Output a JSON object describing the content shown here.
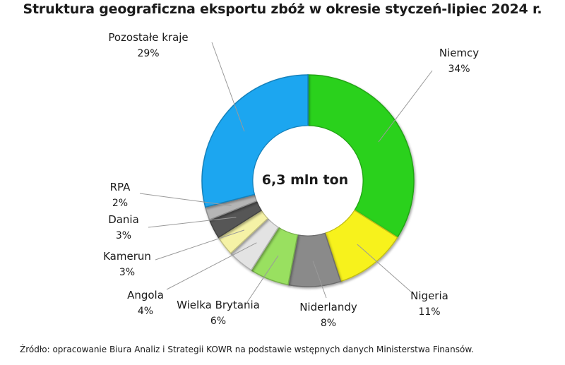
{
  "chart_data": {
    "type": "pie",
    "variant": "donut",
    "title": "Struktura geograficzna eksportu zbóż w okresie styczeń-lipiec 2024 r.",
    "center_label": "6,3 mln ton",
    "unit": "%",
    "legend": "none",
    "slices": [
      {
        "label": "Niemcy",
        "value": 34,
        "value_label": "34%",
        "color": "#2bd11a"
      },
      {
        "label": "Nigeria",
        "value": 11,
        "value_label": "11%",
        "color": "#f7f21e"
      },
      {
        "label": "Niderlandy",
        "value": 8,
        "value_label": "8%",
        "color": "#8a8a8a"
      },
      {
        "label": "Wielka Brytania",
        "value": 6,
        "value_label": "6%",
        "color": "#99e060"
      },
      {
        "label": "Angola",
        "value": 4,
        "value_label": "4%",
        "color": "#e3e3e3"
      },
      {
        "label": "Kamerun",
        "value": 3,
        "value_label": "3%",
        "color": "#f5f2a6"
      },
      {
        "label": "Dania",
        "value": 3,
        "value_label": "3%",
        "color": "#565656"
      },
      {
        "label": "RPA",
        "value": 2,
        "value_label": "2%",
        "color": "#b5b5b5"
      },
      {
        "label": "Pozostałe kraje",
        "value": 29,
        "value_label": "29%",
        "color": "#1aa6f0"
      }
    ]
  },
  "source_note": "Źródło: opracowanie Biura Analiz i Strategii KOWR na podstawie wstępnych danych Ministerstwa Finansów."
}
